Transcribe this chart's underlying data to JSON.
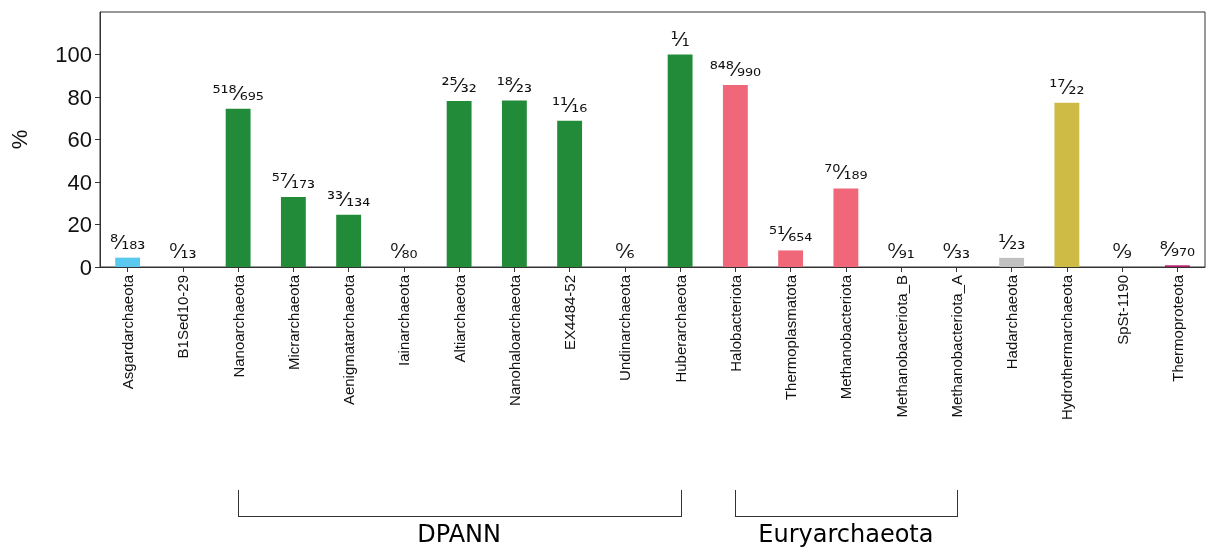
{
  "chart_data": {
    "type": "bar",
    "ylabel": "%",
    "categories": [
      "Asgardarchaeota",
      "B1Sed10-29",
      "Nanoarchaeota",
      "Micrarchaeota",
      "Aenigmatarchaeota",
      "Iainarchaeota",
      "Altiarchaeota",
      "Nanohaloarchaeota",
      "EX4484-52",
      "Undinarchaeota",
      "Huberarchaeota",
      "Halobacteriota",
      "Thermoplasmatota",
      "Methanobacteriota",
      "Methanobacteriota_B",
      "Methanobacteriota_A",
      "Hadarchaeota",
      "Hydrothermarchaeota",
      "SpSt-1190",
      "Thermoproteota"
    ],
    "values": [
      4.4,
      0,
      74.5,
      32.9,
      24.6,
      0,
      78.1,
      78.3,
      68.8,
      0,
      100,
      85.7,
      7.8,
      37.0,
      0,
      0,
      4.3,
      77.3,
      0,
      0.8
    ],
    "colors": [
      "#5bc8ef",
      "#228b3a",
      "#228b3a",
      "#228b3a",
      "#228b3a",
      "#228b3a",
      "#228b3a",
      "#228b3a",
      "#228b3a",
      "#228b3a",
      "#228b3a",
      "#f0677a",
      "#f0677a",
      "#f0677a",
      "#f0677a",
      "#f0677a",
      "#c0c0c0",
      "#cdbb45",
      "#b5206e",
      "#b5206e"
    ],
    "value_labels": [
      "⁸⁄₁₈₃",
      "⁰⁄₁₃",
      "⁵¹⁸⁄₆₉₅",
      "⁵⁷⁄₁₇₃",
      "³³⁄₁₃₄",
      "⁰⁄₈₀",
      "²⁵⁄₃₂",
      "¹⁸⁄₂₃",
      "¹¹⁄₁₆",
      "⁰⁄₆",
      "¹⁄₁",
      "⁸⁴⁸⁄₉₉₀",
      "⁵¹⁄₆₅₄",
      "⁷⁰⁄₁₈₉",
      "⁰⁄₉₁",
      "⁰⁄₃₃",
      "¹⁄₂₃",
      "¹⁷⁄₂₂",
      "⁰⁄₉",
      "⁸⁄₉₇₀"
    ],
    "ylim": [
      0,
      120
    ],
    "yticks": [
      0,
      20,
      40,
      60,
      80,
      100
    ],
    "grid": false,
    "annotations": [
      "DPANN",
      "Euryarchaeota"
    ]
  }
}
